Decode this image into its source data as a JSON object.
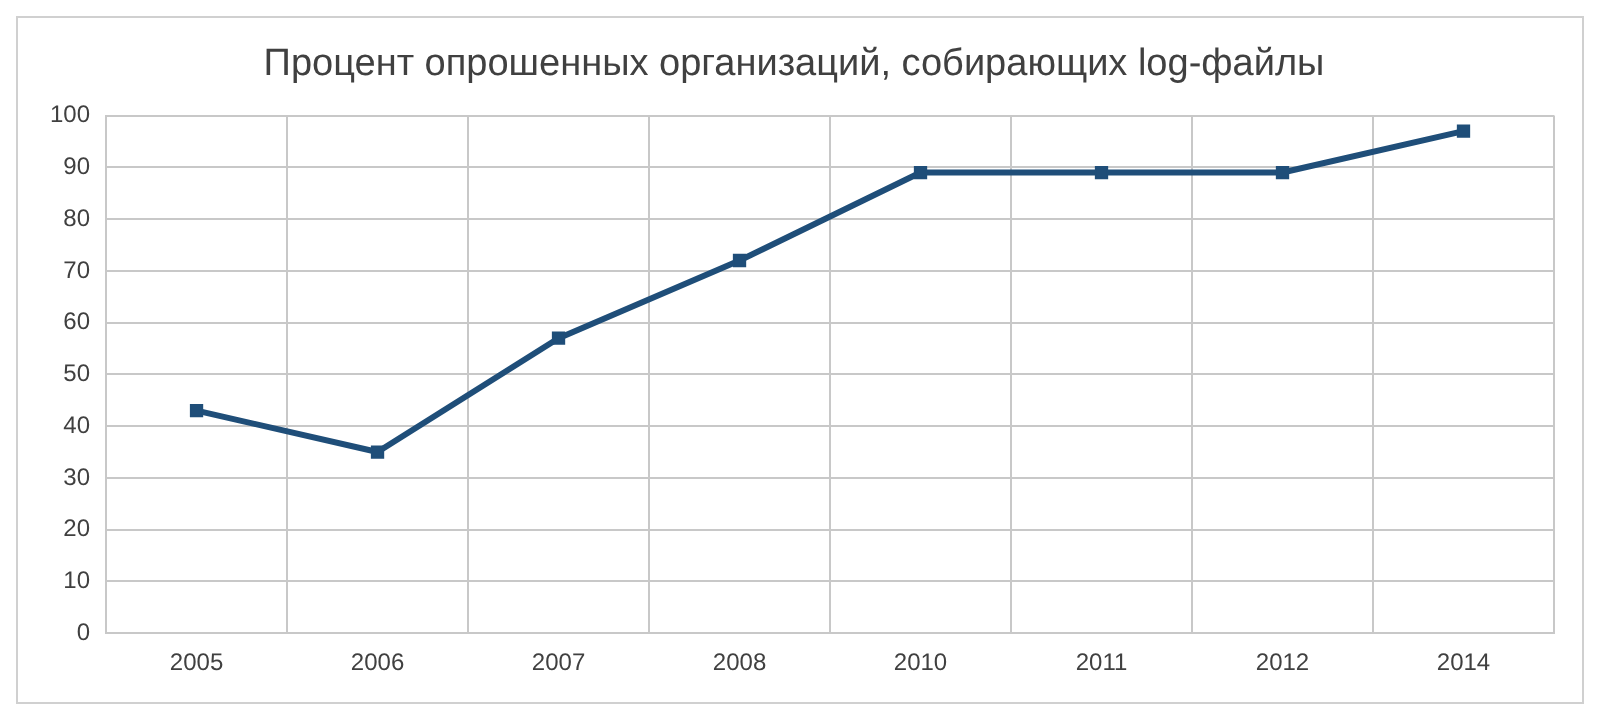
{
  "chart_data": {
    "type": "line",
    "title": "Процент опрошенных организаций, собирающих log-файлы",
    "categories": [
      "2005",
      "2006",
      "2007",
      "2008",
      "2010",
      "2011",
      "2012",
      "2014"
    ],
    "series": [
      {
        "color": "#1f4e79",
        "values": [
          43,
          35,
          57,
          72,
          89,
          89,
          89,
          97
        ]
      }
    ],
    "ylim": [
      0,
      100
    ],
    "yticks": [
      0,
      10,
      20,
      30,
      40,
      50,
      60,
      70,
      80,
      90,
      100
    ],
    "grid": true,
    "legend": false,
    "marker": "square",
    "line_style": "solid"
  }
}
